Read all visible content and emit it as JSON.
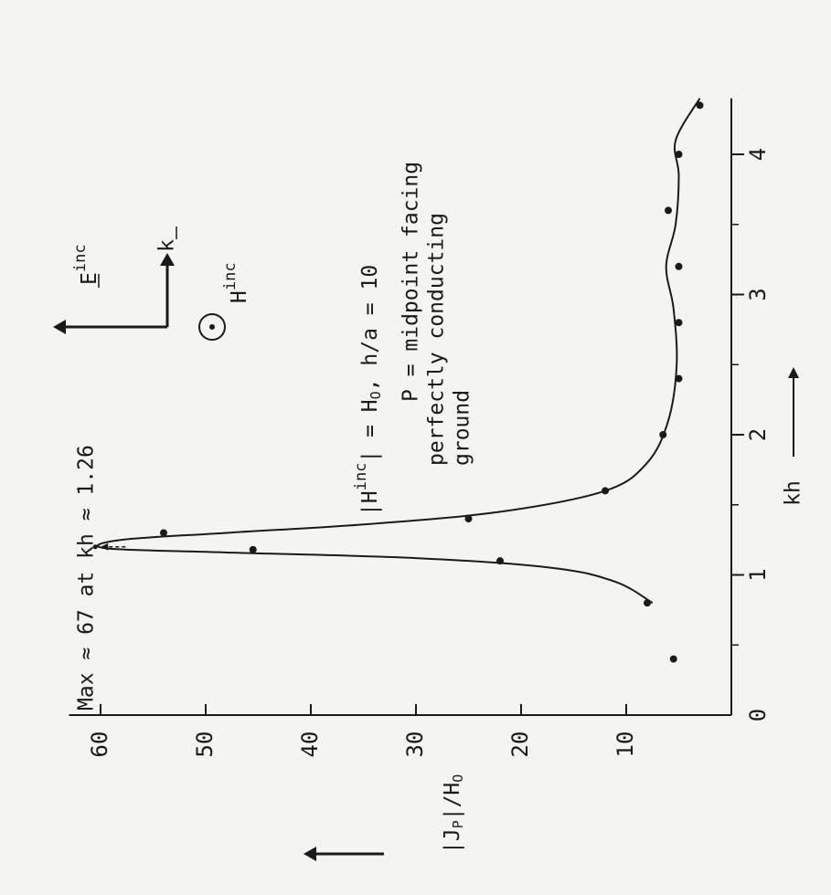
{
  "chart_data": {
    "type": "scatter",
    "title": "",
    "orientation": "rotated 90 degrees counter-clockwise",
    "xlabel": "kh",
    "ylabel": "|J_P|/H_O",
    "xlim": [
      0,
      4.4
    ],
    "ylim": [
      0,
      63
    ],
    "x_ticks": [
      "0",
      "1",
      "2",
      "3",
      "4"
    ],
    "y_ticks": [
      "10",
      "20",
      "30",
      "40",
      "50",
      "60"
    ],
    "grid": false,
    "series": [
      {
        "kind": "measured points",
        "points": [
          {
            "x": 0.4,
            "y": 5.5
          },
          {
            "x": 0.8,
            "y": 8
          },
          {
            "x": 1.1,
            "y": 22
          },
          {
            "x": 1.18,
            "y": 45.5
          },
          {
            "x": 1.3,
            "y": 54
          },
          {
            "x": 1.4,
            "y": 25
          },
          {
            "x": 1.6,
            "y": 12
          },
          {
            "x": 2.0,
            "y": 6.5
          },
          {
            "x": 2.4,
            "y": 5
          },
          {
            "x": 2.8,
            "y": 5
          },
          {
            "x": 3.2,
            "y": 5
          },
          {
            "x": 3.6,
            "y": 6
          },
          {
            "x": 4.0,
            "y": 5
          },
          {
            "x": 4.35,
            "y": 3
          }
        ]
      },
      {
        "kind": "smooth curve",
        "points": [
          {
            "x": 0.8,
            "y": 7.5
          },
          {
            "x": 0.95,
            "y": 11
          },
          {
            "x": 1.05,
            "y": 17
          },
          {
            "x": 1.12,
            "y": 30
          },
          {
            "x": 1.16,
            "y": 48
          },
          {
            "x": 1.19,
            "y": 59.5
          },
          {
            "x": 1.25,
            "y": 58
          },
          {
            "x": 1.3,
            "y": 48
          },
          {
            "x": 1.36,
            "y": 35
          },
          {
            "x": 1.45,
            "y": 22
          },
          {
            "x": 1.6,
            "y": 12
          },
          {
            "x": 1.8,
            "y": 8
          },
          {
            "x": 2.1,
            "y": 6
          },
          {
            "x": 2.5,
            "y": 5.2
          },
          {
            "x": 2.9,
            "y": 5.5
          },
          {
            "x": 3.2,
            "y": 6.2
          },
          {
            "x": 3.5,
            "y": 5.3
          },
          {
            "x": 3.85,
            "y": 5
          },
          {
            "x": 4.1,
            "y": 5.3
          },
          {
            "x": 4.4,
            "y": 3
          }
        ]
      }
    ],
    "max_marker": {
      "x": 1.2,
      "y": 60.5
    },
    "annotations": {
      "max_note": "Max ≈ 67 at kh ≈ 1.26",
      "incident_field": {
        "lhs": "H",
        "sup": "inc",
        "rhs": "= H",
        "rhs_sub": "O",
        "tail": ", h/a = 10"
      },
      "p_def": [
        "P = midpoint facing",
        "perfectly conducting",
        "ground"
      ],
      "e_label": {
        "base": "E",
        "sup": "inc"
      },
      "h_label": {
        "base": "H",
        "sup": "inc"
      },
      "k_label": "k",
      "ylabel_parts": {
        "main": "J",
        "sub": "P",
        "tail": "/H",
        "tail_sub": "O"
      }
    }
  }
}
